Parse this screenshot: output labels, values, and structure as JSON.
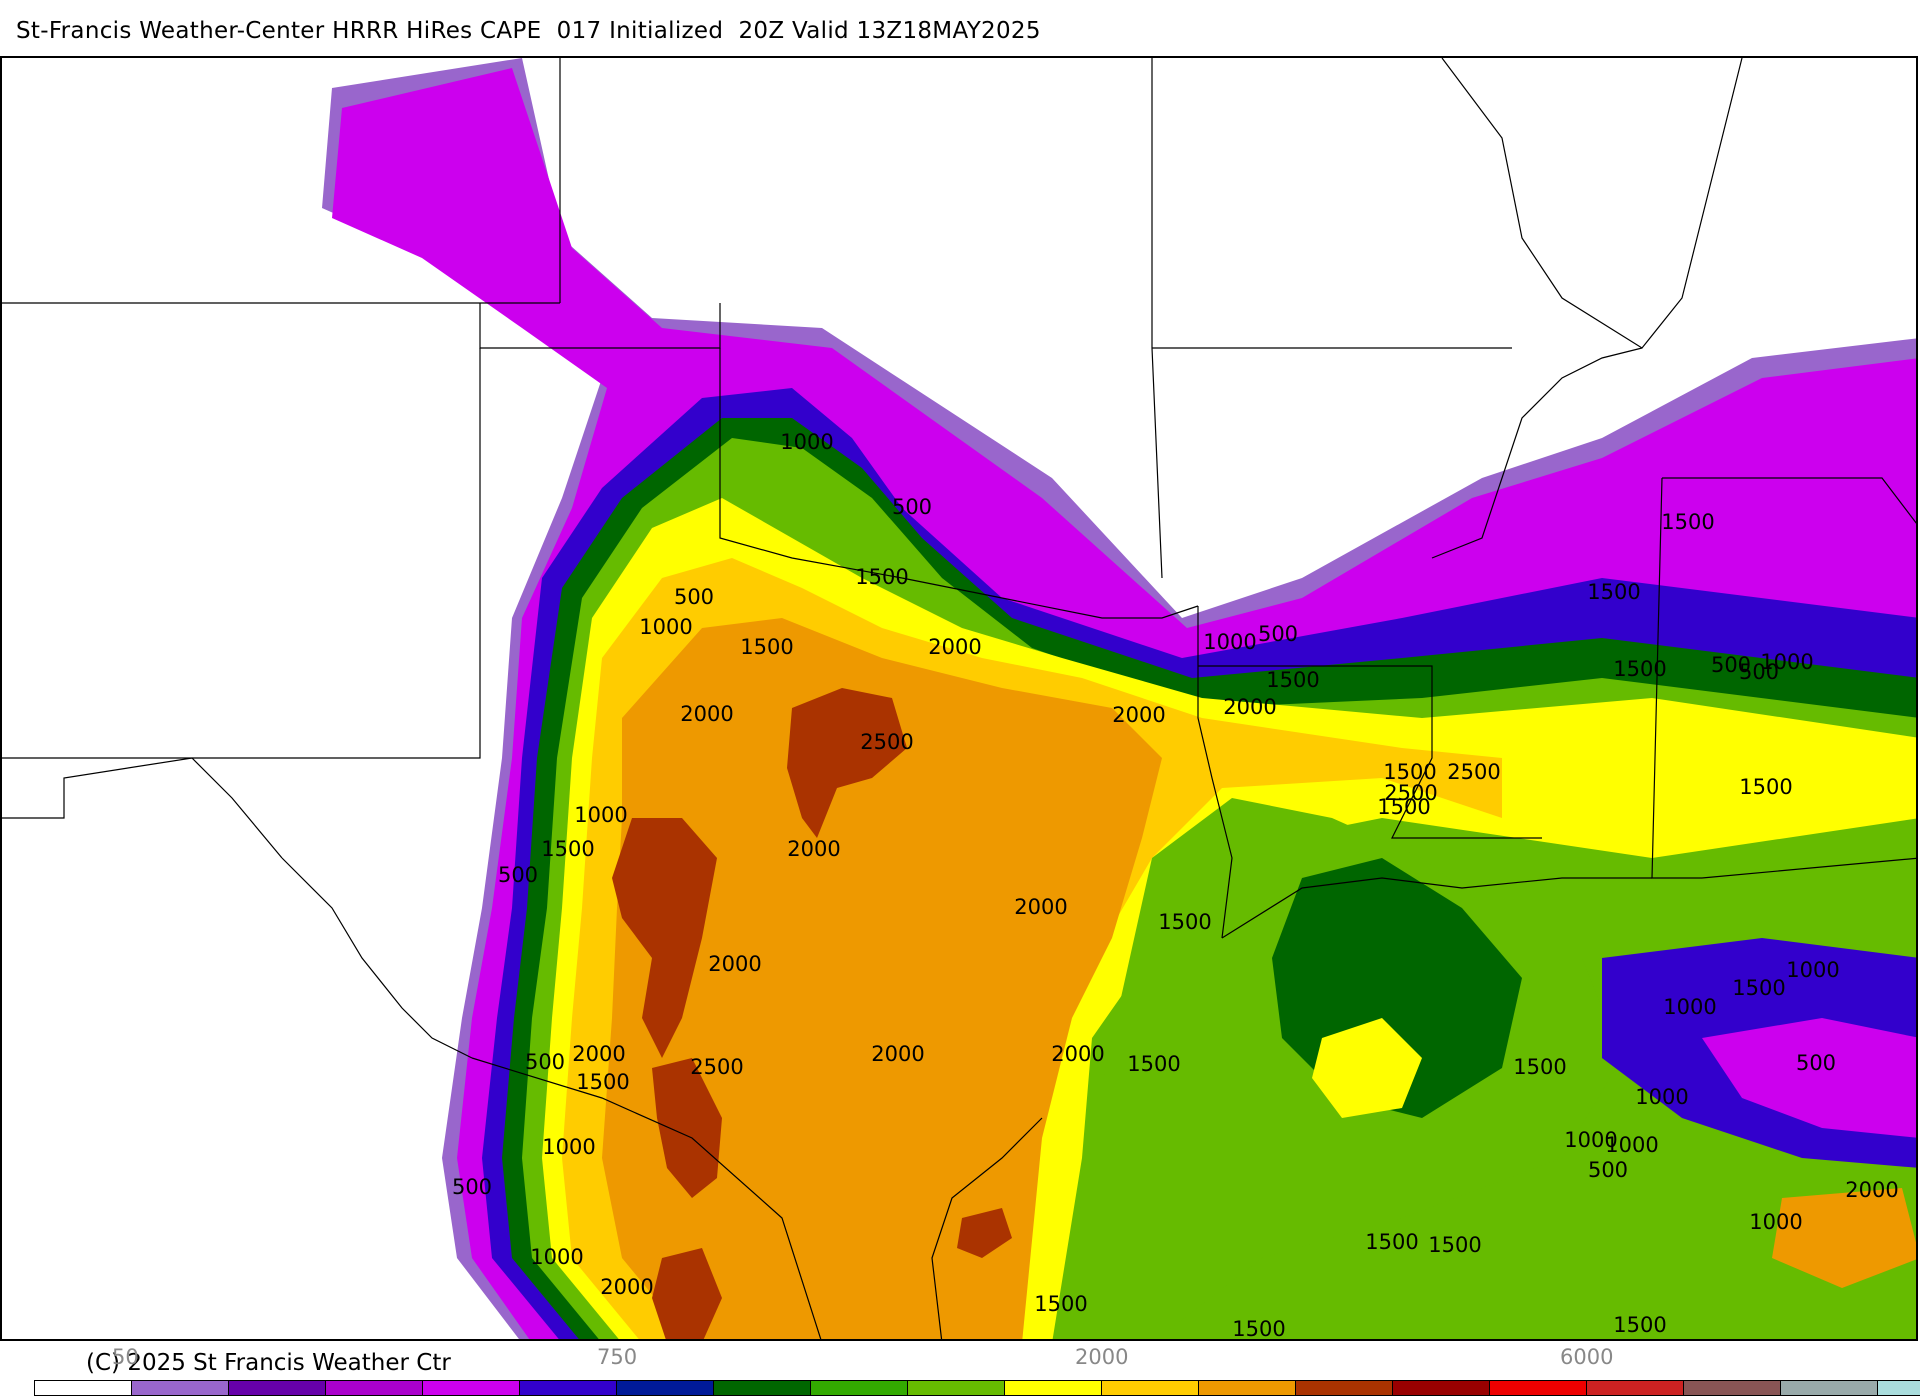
{
  "header": {
    "title": "St-Francis Weather-Center HRRR HiRes CAPE  017 Initialized  20Z Valid 13Z18MAY2025"
  },
  "footer": {
    "copyright": "(C) 2025 St Francis Weather Ctr",
    "scale_ticks": [
      "50",
      "750",
      "2000",
      "6000"
    ]
  },
  "colorbar": {
    "colors": [
      "#ffffff",
      "#9966cc",
      "#6600aa",
      "#aa00cc",
      "#cc00ee",
      "#3300cc",
      "#001a99",
      "#006600",
      "#33aa00",
      "#66bb00",
      "#ffff00",
      "#ffcc00",
      "#ee9900",
      "#aa3300",
      "#990000",
      "#ee0000",
      "#cc2222",
      "#885555",
      "#99aaaa",
      "#aadddd"
    ]
  },
  "map": {
    "region": "Southern Plains / Texas / Gulf Coast",
    "contour_labels": [
      {
        "text": "1000"
      },
      {
        "text": "500"
      },
      {
        "text": "1500"
      },
      {
        "text": "500"
      },
      {
        "text": "1000"
      },
      {
        "text": "1500"
      },
      {
        "text": "2000"
      },
      {
        "text": "2000"
      },
      {
        "text": "2500"
      },
      {
        "text": "2000"
      },
      {
        "text": "1000"
      },
      {
        "text": "500"
      },
      {
        "text": "1500"
      },
      {
        "text": "2000"
      },
      {
        "text": "2500"
      },
      {
        "text": "1000"
      },
      {
        "text": "1500"
      },
      {
        "text": "500"
      },
      {
        "text": "2000"
      },
      {
        "text": "2000"
      },
      {
        "text": "2000"
      },
      {
        "text": "1500"
      },
      {
        "text": "2000"
      },
      {
        "text": "1500"
      },
      {
        "text": "2500"
      },
      {
        "text": "500"
      },
      {
        "text": "2000"
      },
      {
        "text": "1000"
      },
      {
        "text": "2000"
      },
      {
        "text": "1500"
      },
      {
        "text": "500"
      },
      {
        "text": "1000"
      },
      {
        "text": "2000"
      },
      {
        "text": "2500"
      },
      {
        "text": "1500"
      },
      {
        "text": "1500"
      },
      {
        "text": "1500"
      },
      {
        "text": "1500"
      },
      {
        "text": "500"
      },
      {
        "text": "500"
      },
      {
        "text": "1500"
      },
      {
        "text": "500"
      },
      {
        "text": "1000"
      },
      {
        "text": "1500"
      },
      {
        "text": "1500"
      },
      {
        "text": "1000"
      },
      {
        "text": "1500"
      },
      {
        "text": "1000"
      },
      {
        "text": "1000"
      },
      {
        "text": "500"
      },
      {
        "text": "1000"
      },
      {
        "text": "1000"
      },
      {
        "text": "1500"
      },
      {
        "text": "2000"
      },
      {
        "text": "1500"
      },
      {
        "text": "1000"
      },
      {
        "text": "1500"
      },
      {
        "text": "1500"
      },
      {
        "text": "1500"
      }
    ]
  }
}
